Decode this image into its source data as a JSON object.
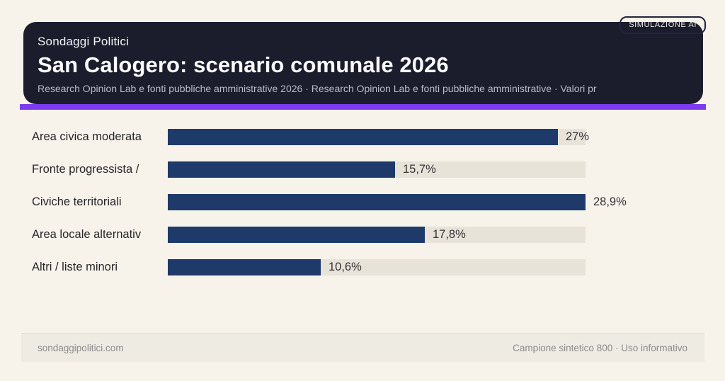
{
  "badge": {
    "label": "SIMULAZIONE AI"
  },
  "header": {
    "kicker": "Sondaggi Politici",
    "title": "San Calogero: scenario comunale 2026",
    "subtitle": "Research Opinion Lab e fonti pubbliche amministrative 2026 · Research Opinion Lab e fonti pubbliche amministrative · Valori pr"
  },
  "chart_data": {
    "type": "bar",
    "orientation": "horizontal",
    "title": "San Calogero: scenario comunale 2026",
    "categories": [
      "Area civica moderata",
      "Fronte progressista /",
      "Civiche territoriali",
      "Area locale alternativ",
      "Altri / liste minori"
    ],
    "values": [
      27,
      15.7,
      28.9,
      17.8,
      10.6
    ],
    "value_labels": [
      "27%",
      "15,7%",
      "28,9%",
      "17,8%",
      "10,6%"
    ],
    "xlim": [
      0,
      28.9
    ],
    "grid": false,
    "legend": "none",
    "bar_color": "#1e3a6a",
    "track_color": "#e7e3d9"
  },
  "footer": {
    "left": "sondaggipolitici.com",
    "right": "Campione sintetico 800 · Uso informativo"
  },
  "colors": {
    "page_background": "#f7f2ea",
    "card_background": "#1b1d2c",
    "accent": "#7b3ced",
    "title_text": "#fbfbfc",
    "subtitle_text": "#b9bbc9",
    "footer_background": "#eeebe2",
    "footer_text": "#8b8b8d"
  }
}
